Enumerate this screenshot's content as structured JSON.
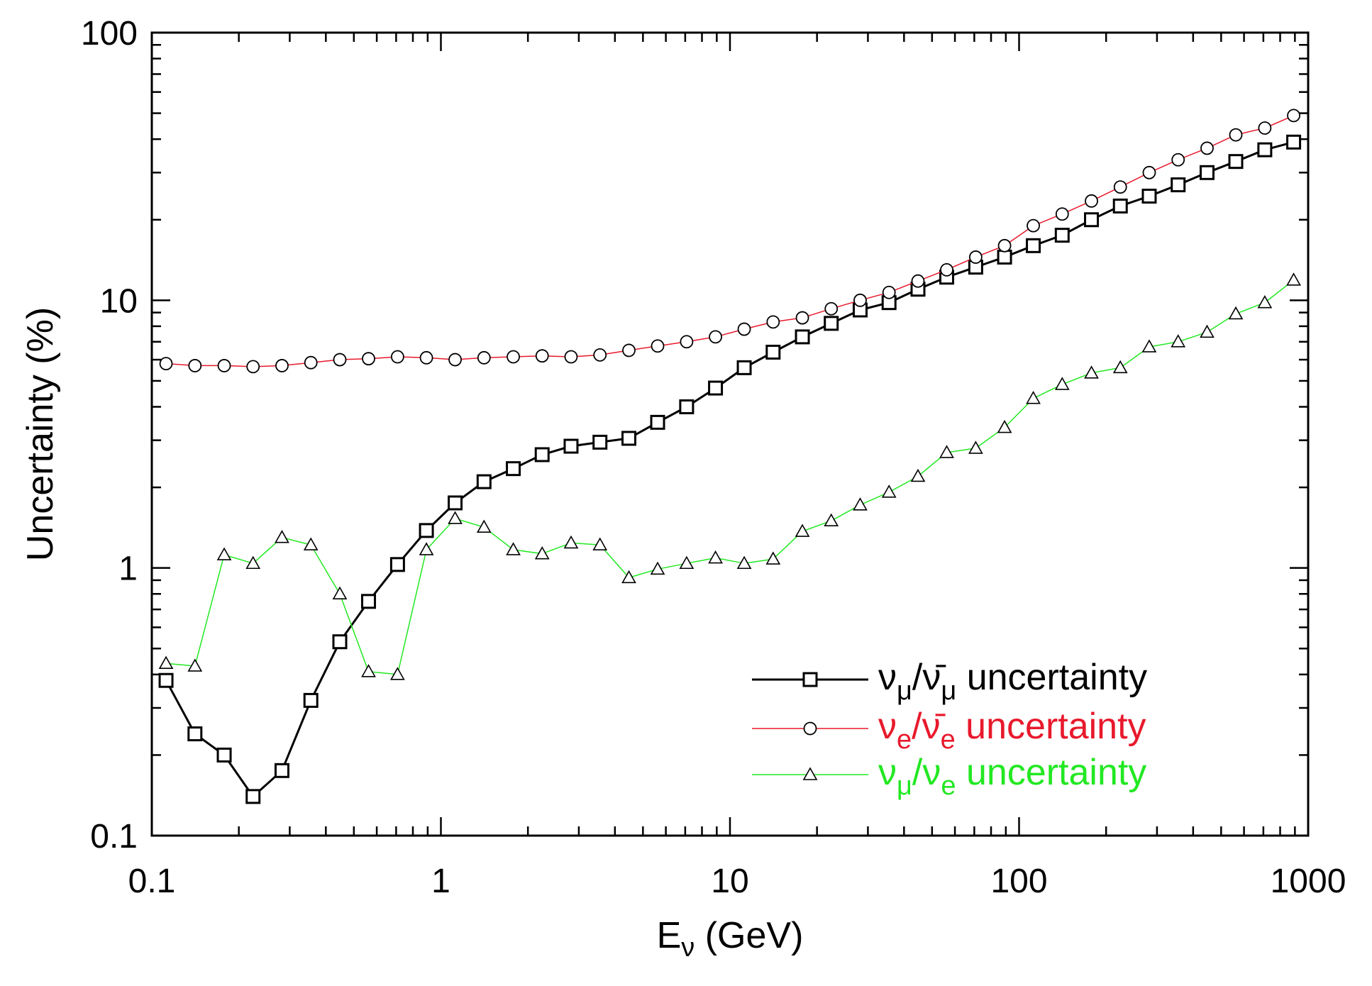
{
  "chart_data": {
    "type": "line",
    "title": "",
    "xlabel": {
      "base": "E",
      "sub": "ν",
      "rest": " (GeV)"
    },
    "ylabel": "Uncertainty (%)",
    "x_scale": "log",
    "y_scale": "log",
    "xlim": [
      0.1,
      1000
    ],
    "ylim": [
      0.1,
      100
    ],
    "x_ticks": [
      {
        "value": 0.1,
        "label": "0.1"
      },
      {
        "value": 1,
        "label": "1"
      },
      {
        "value": 10,
        "label": "10"
      },
      {
        "value": 100,
        "label": "100"
      },
      {
        "value": 1000,
        "label": "1000"
      }
    ],
    "y_ticks": [
      {
        "value": 0.1,
        "label": "0.1"
      },
      {
        "value": 1,
        "label": "1"
      },
      {
        "value": 10,
        "label": "10"
      },
      {
        "value": 100,
        "label": "100"
      }
    ],
    "grid": false,
    "legend_position": "bottom-right",
    "x": [
      0.112,
      0.141,
      0.178,
      0.224,
      0.282,
      0.355,
      0.447,
      0.562,
      0.708,
      0.891,
      1.12,
      1.41,
      1.78,
      2.24,
      2.82,
      3.55,
      4.47,
      5.62,
      7.08,
      8.91,
      11.2,
      14.1,
      17.8,
      22.4,
      28.2,
      35.5,
      44.7,
      56.2,
      70.8,
      89.1,
      112,
      141,
      178,
      224,
      282,
      355,
      447,
      562,
      708,
      891
    ],
    "series": [
      {
        "name": "νμ/ν̄μ uncertainty",
        "legend": {
          "a": "ν",
          "a_sub": "μ",
          "slash": "/",
          "b": "ν̄",
          "b_sub": "μ",
          "text": " uncertainty"
        },
        "color": "#000000",
        "marker": "square",
        "values": [
          0.38,
          0.24,
          0.2,
          0.14,
          0.175,
          0.32,
          0.53,
          0.75,
          1.03,
          1.38,
          1.75,
          2.1,
          2.35,
          2.65,
          2.85,
          2.95,
          3.05,
          3.5,
          4.0,
          4.7,
          5.6,
          6.4,
          7.3,
          8.2,
          9.2,
          9.8,
          11.0,
          12.2,
          13.3,
          14.5,
          16.0,
          17.5,
          20.0,
          22.5,
          24.5,
          27.0,
          30.0,
          33.0,
          36.5,
          39.0
        ]
      },
      {
        "name": "νe/ν̄e uncertainty",
        "legend": {
          "a": "ν",
          "a_sub": "e",
          "slash": "/",
          "b": "ν̄",
          "b_sub": "e",
          "text": " uncertainty"
        },
        "color": "#e8192c",
        "marker": "circle",
        "values": [
          5.8,
          5.7,
          5.7,
          5.65,
          5.7,
          5.85,
          6.0,
          6.05,
          6.15,
          6.1,
          6.0,
          6.1,
          6.15,
          6.2,
          6.15,
          6.25,
          6.5,
          6.75,
          7.0,
          7.3,
          7.8,
          8.3,
          8.6,
          9.3,
          10.0,
          10.7,
          11.8,
          13.0,
          14.5,
          16.0,
          19.0,
          21.0,
          23.5,
          26.5,
          30.0,
          33.5,
          37.0,
          41.5,
          44.0,
          49.0
        ]
      },
      {
        "name": "νμ/νe uncertainty",
        "legend": {
          "a": "ν",
          "a_sub": "μ",
          "slash": "/",
          "b": "ν",
          "b_sub": "e",
          "text": " uncertainty"
        },
        "color": "#22e822",
        "marker": "triangle",
        "values": [
          0.44,
          0.43,
          1.12,
          1.04,
          1.3,
          1.22,
          0.8,
          0.41,
          0.4,
          1.17,
          1.53,
          1.42,
          1.17,
          1.13,
          1.24,
          1.22,
          0.92,
          0.99,
          1.04,
          1.09,
          1.04,
          1.08,
          1.37,
          1.5,
          1.72,
          1.92,
          2.2,
          2.7,
          2.8,
          3.35,
          4.3,
          4.85,
          5.35,
          5.6,
          6.7,
          7.0,
          7.6,
          8.9,
          9.8,
          11.9
        ]
      }
    ]
  }
}
